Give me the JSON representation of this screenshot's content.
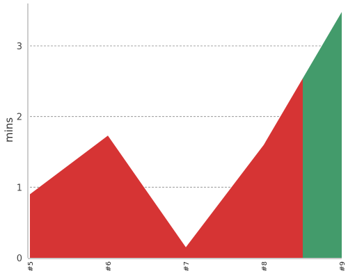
{
  "chart_data": {
    "type": "area",
    "title": "",
    "xlabel": "",
    "ylabel": "mins",
    "categories": [
      "#5",
      "#6",
      "#7",
      "#8",
      "#9"
    ],
    "values": [
      0.9,
      1.73,
      0.15,
      1.6,
      3.48
    ],
    "threshold_x": 3.5,
    "ylim": [
      0,
      3.6
    ],
    "yticks": [
      "0",
      "1",
      "2",
      "3"
    ],
    "grid": "horizontal-dashed",
    "legend": "none",
    "colors": {
      "before_threshold": "#d63434",
      "after_threshold": "#439b6b",
      "grid": "#888888",
      "axis": "#999999"
    }
  }
}
